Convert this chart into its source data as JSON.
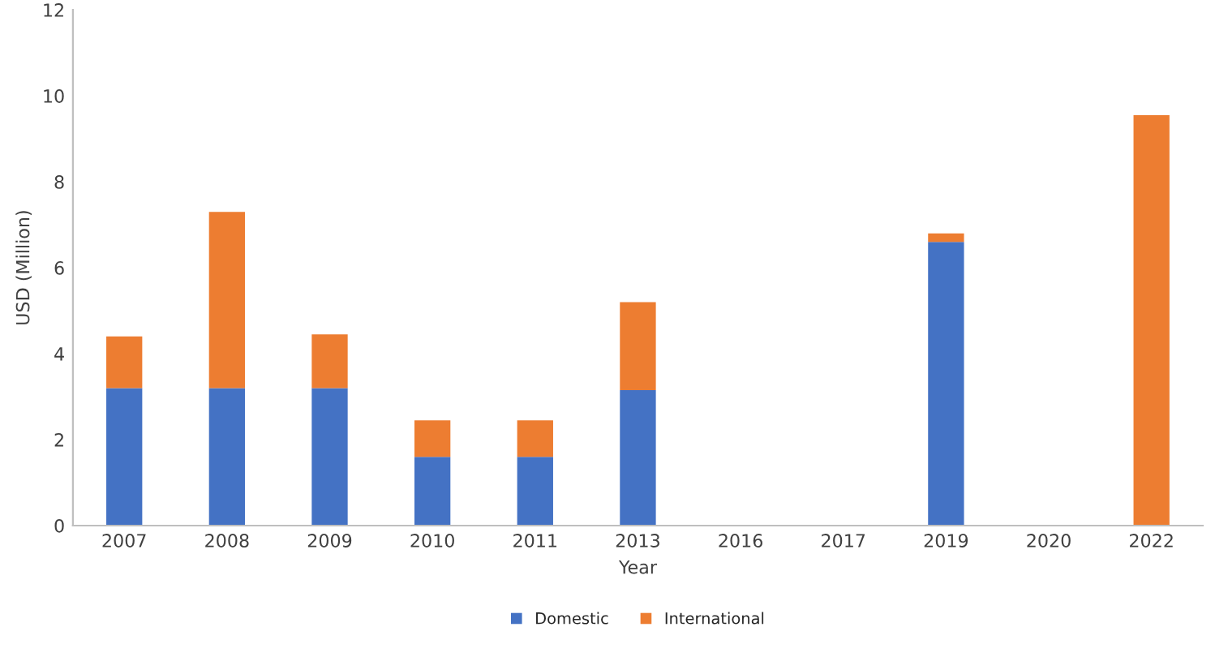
{
  "chart_data": {
    "type": "bar",
    "stacked": true,
    "xlabel": "Year",
    "ylabel": "USD (Million)",
    "categories": [
      "2007",
      "2008",
      "2009",
      "2010",
      "2011",
      "2013",
      "2016",
      "2017",
      "2019",
      "2020",
      "2022"
    ],
    "series": [
      {
        "name": "Domestic",
        "color": "#4472c4",
        "values": [
          3.2,
          3.2,
          3.2,
          1.6,
          1.6,
          3.15,
          null,
          null,
          6.6,
          null,
          null
        ]
      },
      {
        "name": "International",
        "color": "#ed7d31",
        "values": [
          1.2,
          4.1,
          1.25,
          0.85,
          0.85,
          2.05,
          null,
          null,
          0.2,
          null,
          9.55
        ]
      }
    ],
    "ylim": [
      0,
      12
    ],
    "yticks": [
      0,
      2,
      4,
      6,
      8,
      10,
      12
    ],
    "grid": false,
    "legend": "bottom"
  }
}
